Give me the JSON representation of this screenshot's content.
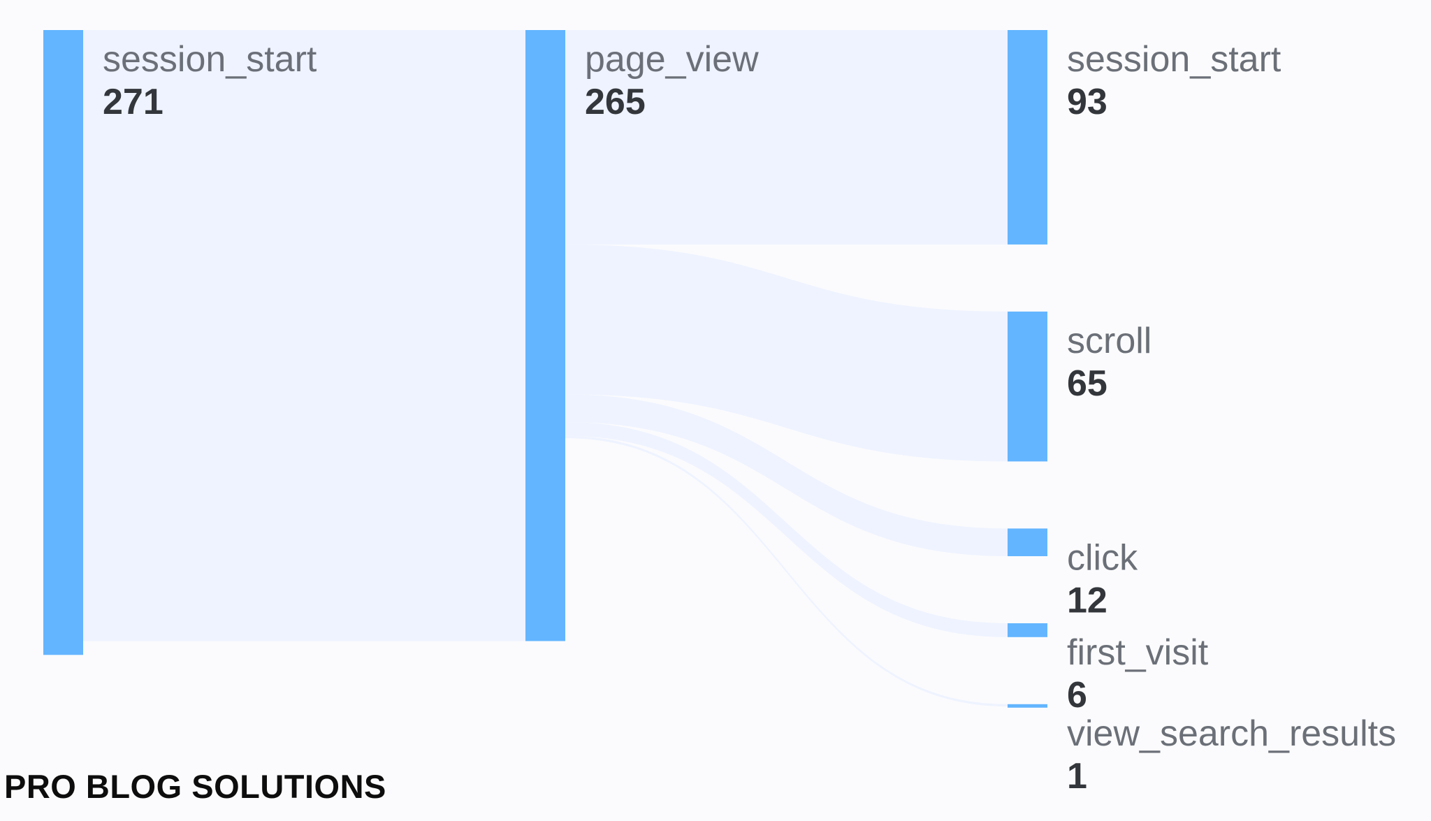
{
  "chart_data": {
    "type": "sankey",
    "colors": {
      "node": "#63b5ff",
      "link": "#eef3ff",
      "background": "#fbfbfd"
    },
    "columns": [
      [
        {
          "id": "s0",
          "name": "session_start",
          "value": 271
        }
      ],
      [
        {
          "id": "p1",
          "name": "page_view",
          "value": 265
        }
      ],
      [
        {
          "id": "s2",
          "name": "session_start",
          "value": 93
        },
        {
          "id": "sc2",
          "name": "scroll",
          "value": 65
        },
        {
          "id": "c2",
          "name": "click",
          "value": 12
        },
        {
          "id": "f2",
          "name": "first_visit",
          "value": 6
        },
        {
          "id": "v2",
          "name": "view_search_results",
          "value": 1
        }
      ]
    ],
    "links": [
      {
        "source": "s0",
        "target": "p1",
        "value": 265
      },
      {
        "source": "p1",
        "target": "s2",
        "value": 93
      },
      {
        "source": "p1",
        "target": "sc2",
        "value": 65
      },
      {
        "source": "p1",
        "target": "c2",
        "value": 12
      },
      {
        "source": "p1",
        "target": "f2",
        "value": 6
      },
      {
        "source": "p1",
        "target": "v2",
        "value": 1
      }
    ]
  },
  "watermark": "PRO BLOG SOLUTIONS"
}
